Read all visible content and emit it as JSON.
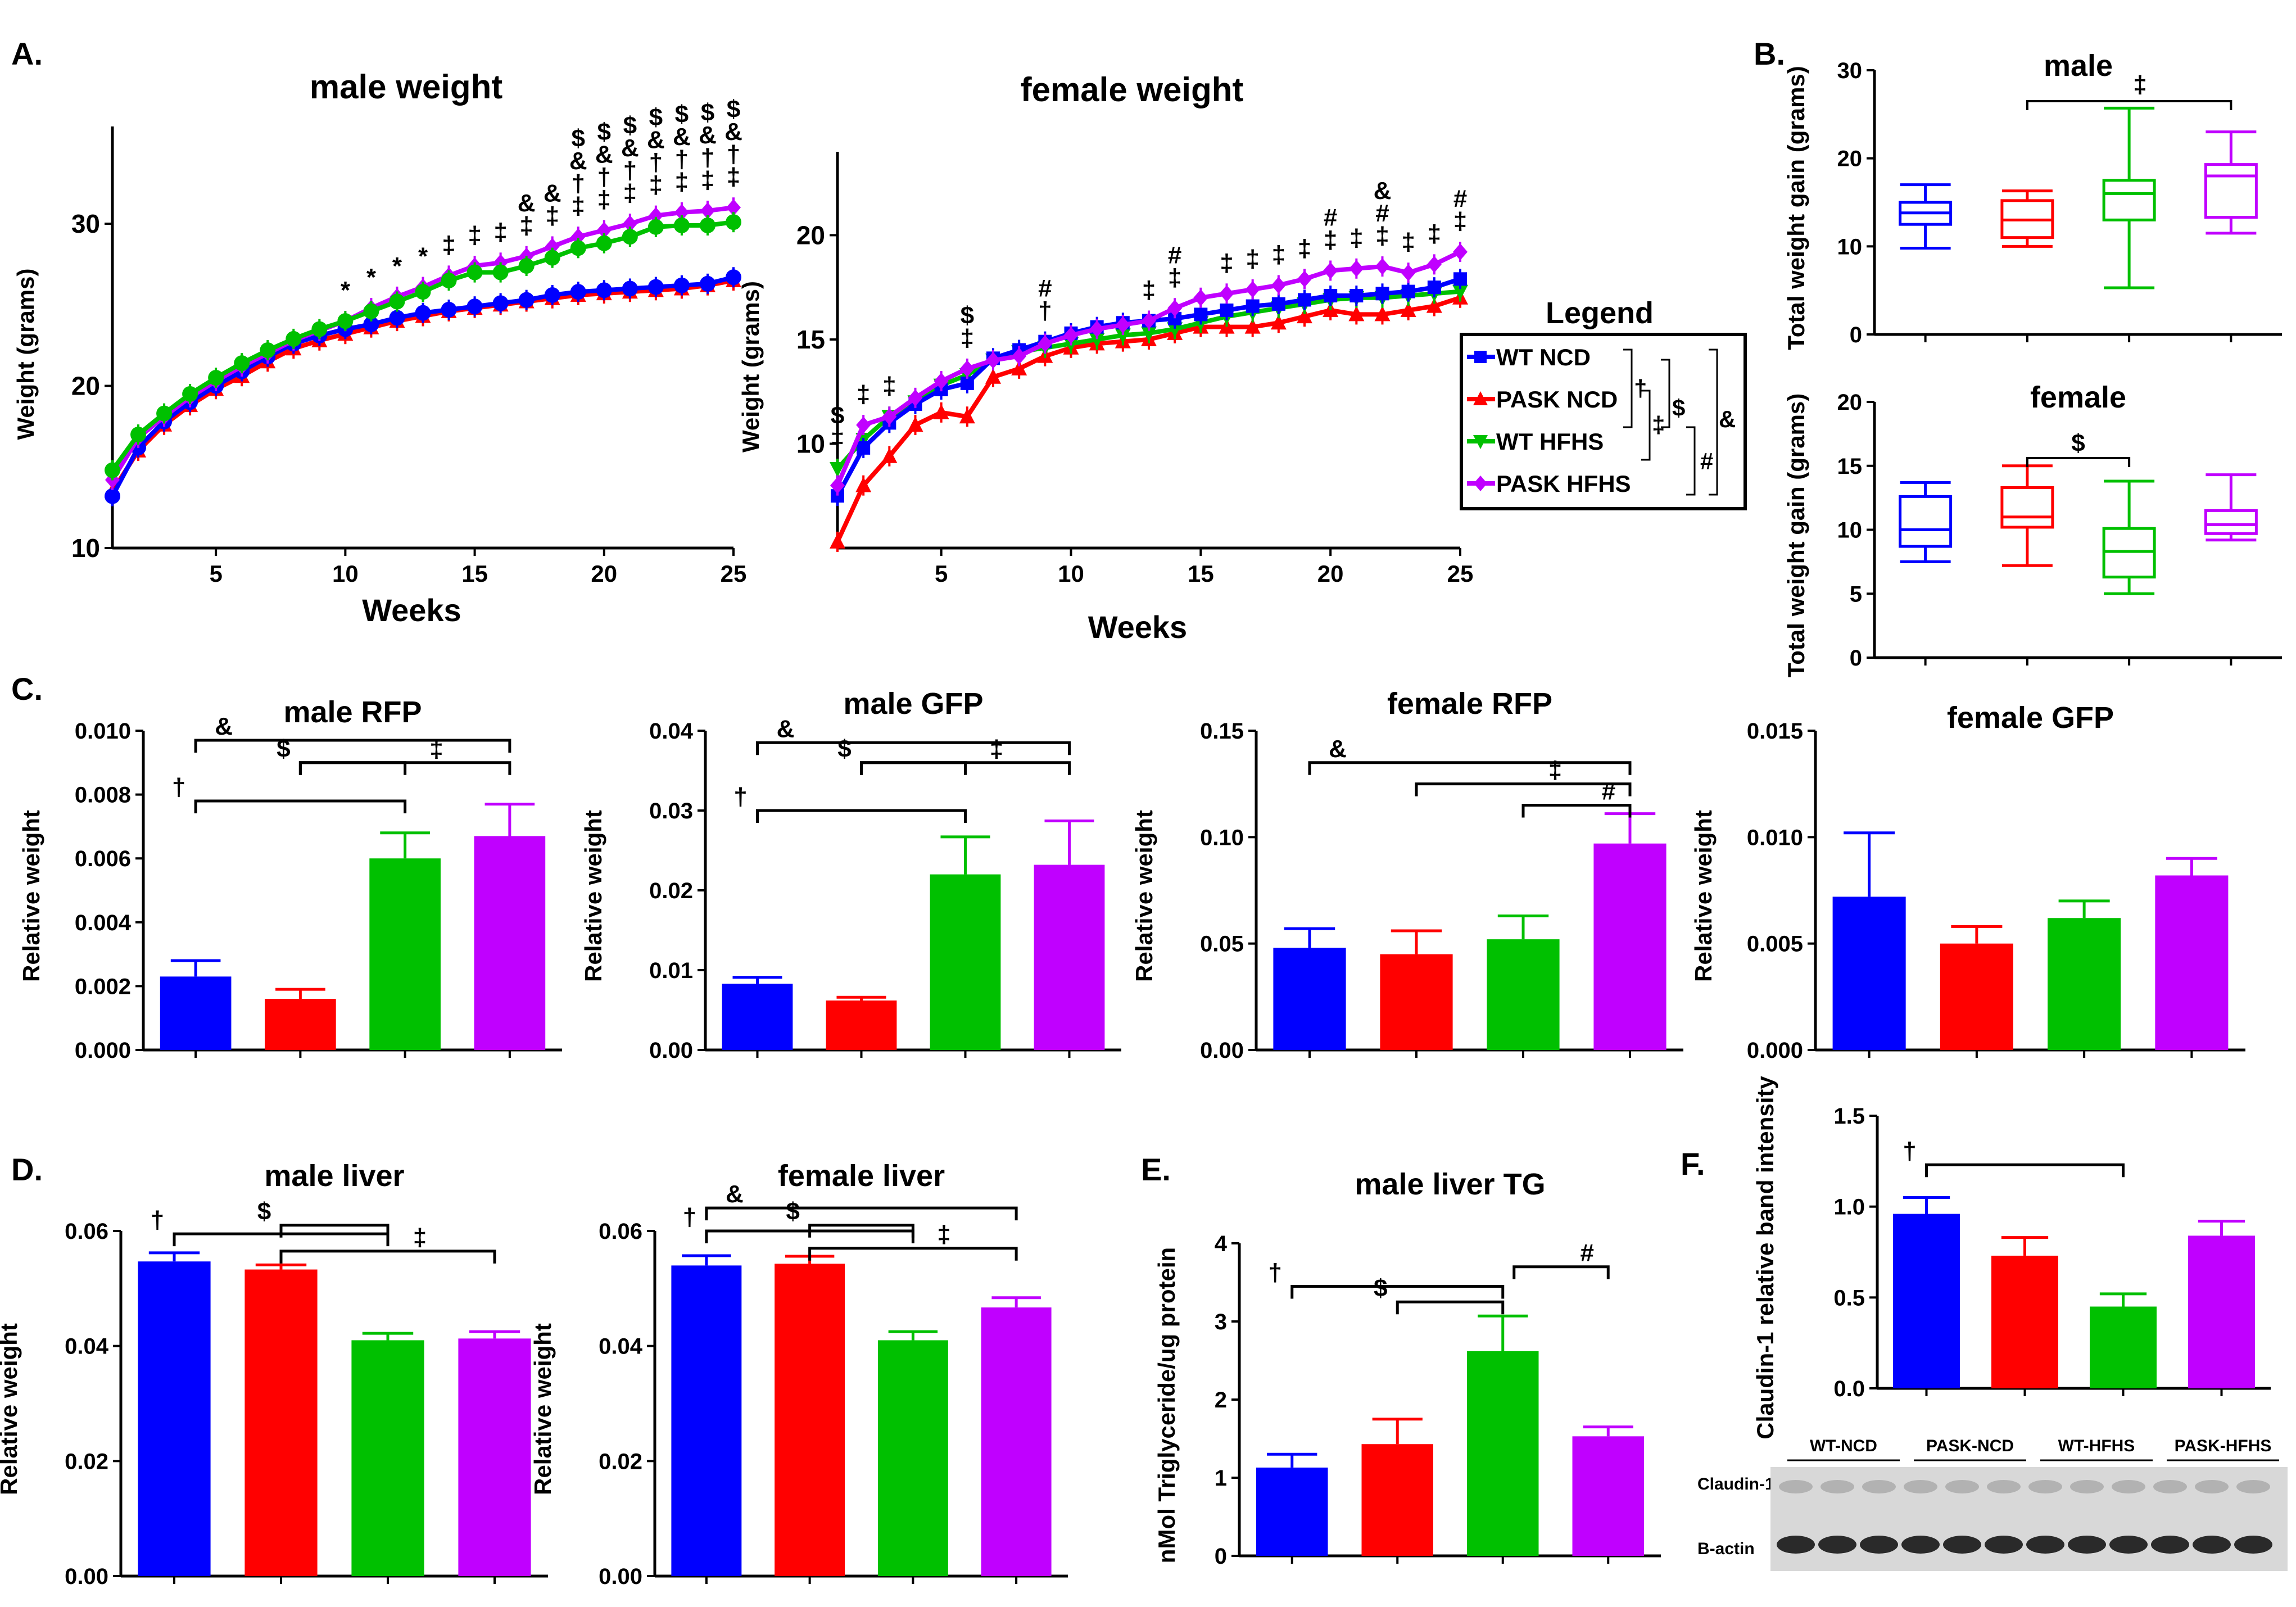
{
  "colors": {
    "wt_ncd": "#0000ff",
    "pask_ncd": "#ff0000",
    "wt_hfhs": "#00c000",
    "pask_hfhs": "#c000ff"
  },
  "legend": {
    "title": "Legend",
    "items": [
      "WT NCD",
      "PASK NCD",
      "WT HFHS",
      "PASK HFHS"
    ],
    "brackets": [
      "†",
      "‡",
      "$",
      "#",
      "&"
    ]
  },
  "panels": {
    "A": "A.",
    "B": "B.",
    "C": "C.",
    "D": "D.",
    "E": "E.",
    "F": "F."
  },
  "chart_data": [
    {
      "id": "male_weight",
      "type": "line",
      "title": "male weight",
      "xlabel": "Weeks",
      "ylabel": "Weight (grams)",
      "xlim": [
        1,
        25
      ],
      "ylim": [
        10,
        36
      ],
      "xticks": [
        5,
        10,
        15,
        20,
        25
      ],
      "yticks": [
        10,
        20,
        30
      ],
      "x": [
        1,
        2,
        3,
        4,
        5,
        6,
        7,
        8,
        9,
        10,
        11,
        12,
        13,
        14,
        15,
        16,
        17,
        18,
        19,
        20,
        21,
        22,
        23,
        24,
        25
      ],
      "series": [
        {
          "name": "WT NCD",
          "values": [
            13.2,
            16.2,
            17.8,
            19.0,
            20.0,
            20.9,
            21.8,
            22.6,
            23.1,
            23.5,
            23.8,
            24.2,
            24.5,
            24.7,
            24.9,
            25.1,
            25.3,
            25.6,
            25.8,
            25.9,
            26.0,
            26.1,
            26.2,
            26.3,
            26.7
          ]
        },
        {
          "name": "PASK NCD",
          "values": [
            13.5,
            16.0,
            17.6,
            18.8,
            19.8,
            20.6,
            21.5,
            22.3,
            22.8,
            23.2,
            23.6,
            24.0,
            24.3,
            24.6,
            24.8,
            25.0,
            25.2,
            25.4,
            25.6,
            25.7,
            25.8,
            25.9,
            26.0,
            26.2,
            26.5
          ]
        },
        {
          "name": "WT HFHS",
          "values": [
            14.8,
            17.0,
            18.3,
            19.5,
            20.5,
            21.4,
            22.2,
            22.9,
            23.5,
            24.0,
            24.6,
            25.2,
            25.8,
            26.5,
            27.0,
            27.0,
            27.4,
            27.9,
            28.5,
            28.8,
            29.2,
            29.8,
            29.9,
            29.9,
            30.1
          ]
        },
        {
          "name": "PASK HFHS",
          "values": [
            14.2,
            16.8,
            18.1,
            19.3,
            20.3,
            21.2,
            22.0,
            22.8,
            23.4,
            24.0,
            24.8,
            25.5,
            26.1,
            26.8,
            27.4,
            27.6,
            28.0,
            28.6,
            29.2,
            29.6,
            30.0,
            30.5,
            30.7,
            30.8,
            31.0
          ]
        }
      ],
      "annotations": [
        {
          "week": 10,
          "text": "*"
        },
        {
          "week": 11,
          "text": "*"
        },
        {
          "week": 12,
          "text": "*"
        },
        {
          "week": 13,
          "text": "*"
        },
        {
          "week": 14,
          "text": "‡"
        },
        {
          "week": 15,
          "text": "‡"
        },
        {
          "week": 16,
          "text": "‡"
        },
        {
          "week": 17,
          "text": "& ‡"
        },
        {
          "week": 18,
          "text": "& ‡"
        },
        {
          "week": 19,
          "text": "$ & † ‡"
        },
        {
          "week": 20,
          "text": "$ & † ‡"
        },
        {
          "week": 21,
          "text": "$ & † ‡"
        },
        {
          "week": 22,
          "text": "$ & † ‡"
        },
        {
          "week": 23,
          "text": "$ & † ‡"
        },
        {
          "week": 24,
          "text": "$ & † ‡"
        },
        {
          "week": 25,
          "text": "$ & † ‡"
        }
      ]
    },
    {
      "id": "female_weight",
      "type": "line",
      "title": "female weight",
      "xlabel": "Weeks",
      "ylabel": "Weight (grams)",
      "xlim": [
        1,
        25
      ],
      "ylim": [
        5,
        24
      ],
      "xticks": [
        5,
        10,
        15,
        20,
        25
      ],
      "yticks": [
        10,
        15,
        20
      ],
      "x": [
        1,
        2,
        3,
        4,
        5,
        6,
        7,
        8,
        9,
        10,
        11,
        12,
        13,
        14,
        15,
        16,
        17,
        18,
        19,
        20,
        21,
        22,
        23,
        24,
        25
      ],
      "series": [
        {
          "name": "WT NCD",
          "values": [
            7.5,
            9.8,
            11.0,
            11.9,
            12.6,
            12.9,
            14.1,
            14.5,
            14.9,
            15.3,
            15.6,
            15.8,
            15.9,
            16.0,
            16.2,
            16.4,
            16.6,
            16.7,
            16.9,
            17.1,
            17.1,
            17.2,
            17.3,
            17.5,
            17.9
          ]
        },
        {
          "name": "PASK NCD",
          "values": [
            5.3,
            8.0,
            9.4,
            10.9,
            11.5,
            11.3,
            13.2,
            13.6,
            14.2,
            14.6,
            14.8,
            14.9,
            15.0,
            15.3,
            15.6,
            15.6,
            15.6,
            15.8,
            16.1,
            16.4,
            16.2,
            16.2,
            16.4,
            16.6,
            17.0
          ]
        },
        {
          "name": "WT HFHS",
          "values": [
            8.8,
            10.2,
            11.3,
            12.0,
            12.8,
            13.3,
            14.0,
            14.4,
            14.6,
            14.8,
            15.0,
            15.2,
            15.3,
            15.5,
            15.8,
            16.1,
            16.3,
            16.5,
            16.7,
            16.9,
            17.0,
            17.0,
            17.1,
            17.2,
            17.3
          ]
        },
        {
          "name": "PASK HFHS",
          "values": [
            8.0,
            10.9,
            11.3,
            12.2,
            13.0,
            13.6,
            14.0,
            14.2,
            14.8,
            15.2,
            15.5,
            15.7,
            15.9,
            16.5,
            17.0,
            17.2,
            17.4,
            17.6,
            17.9,
            18.3,
            18.4,
            18.5,
            18.2,
            18.6,
            19.2
          ]
        }
      ],
      "annotations": [
        {
          "week": 1,
          "text": "$ ‡"
        },
        {
          "week": 2,
          "text": "‡"
        },
        {
          "week": 3,
          "text": "‡"
        },
        {
          "week": 6,
          "text": "$ ‡"
        },
        {
          "week": 9,
          "text": "# †"
        },
        {
          "week": 13,
          "text": "‡"
        },
        {
          "week": 14,
          "text": "# ‡"
        },
        {
          "week": 16,
          "text": "‡"
        },
        {
          "week": 17,
          "text": "‡"
        },
        {
          "week": 18,
          "text": "‡"
        },
        {
          "week": 19,
          "text": "‡"
        },
        {
          "week": 20,
          "text": "# ‡"
        },
        {
          "week": 21,
          "text": "‡"
        },
        {
          "week": 22,
          "text": "& # ‡"
        },
        {
          "week": 23,
          "text": "‡"
        },
        {
          "week": 24,
          "text": "‡"
        },
        {
          "week": 25,
          "text": "# ‡"
        }
      ]
    },
    {
      "id": "male_gain",
      "type": "box",
      "title": "male",
      "title_symbol": "‡",
      "ylabel": "Total weight gain (grams)",
      "ylim": [
        0,
        30
      ],
      "yticks": [
        0,
        10,
        20,
        30
      ],
      "categories": [
        "WT NCD",
        "PASK NCD",
        "WT HFHS",
        "PASK HFHS"
      ],
      "boxes": [
        {
          "min": 9.8,
          "q1": 12.5,
          "median": 13.8,
          "q3": 15.0,
          "max": 17.0
        },
        {
          "min": 10.0,
          "q1": 11.0,
          "median": 13.0,
          "q3": 15.2,
          "max": 16.3
        },
        {
          "min": 5.3,
          "q1": 13.0,
          "median": 16.0,
          "q3": 17.5,
          "max": 25.7
        },
        {
          "min": 11.5,
          "q1": 13.3,
          "median": 18.0,
          "q3": 19.3,
          "max": 23.0
        }
      ],
      "brackets": [
        {
          "from": 1,
          "to": 3,
          "label": ""
        }
      ]
    },
    {
      "id": "female_gain",
      "type": "box",
      "title": "female",
      "ylabel": "Total weight gain (grams)",
      "ylim": [
        0,
        20
      ],
      "yticks": [
        0,
        5,
        10,
        15,
        20
      ],
      "categories": [
        "WT NCD",
        "PASK NCD",
        "WT HFHS",
        "PASK HFHS"
      ],
      "boxes": [
        {
          "min": 7.5,
          "q1": 8.7,
          "median": 10.0,
          "q3": 12.6,
          "max": 13.7
        },
        {
          "min": 7.2,
          "q1": 10.2,
          "median": 11.0,
          "q3": 13.3,
          "max": 15.0
        },
        {
          "min": 5.0,
          "q1": 6.3,
          "median": 8.3,
          "q3": 10.1,
          "max": 13.8
        },
        {
          "min": 9.2,
          "q1": 9.7,
          "median": 10.4,
          "q3": 11.5,
          "max": 14.3
        }
      ],
      "brackets": [
        {
          "from": 1,
          "to": 2,
          "label": "$"
        }
      ]
    },
    {
      "id": "male_rfp",
      "type": "bar",
      "title": "male RFP",
      "ylabel": "Relative weight",
      "ylim": [
        0,
        0.01
      ],
      "yticks": [
        0.0,
        0.002,
        0.004,
        0.006,
        0.008,
        0.01
      ],
      "ytick_labels": [
        "0.000",
        "0.002",
        "0.004",
        "0.006",
        "0.008",
        "0.010"
      ],
      "categories": [
        "WT NCD",
        "PASK NCD",
        "WT HFHS",
        "PASK HFHS"
      ],
      "values": [
        0.0023,
        0.0016,
        0.006,
        0.0067
      ],
      "errors": [
        0.0005,
        0.0003,
        0.0008,
        0.001
      ],
      "brackets": [
        {
          "from": 0,
          "to": 3,
          "label": "&",
          "level": 0.0097
        },
        {
          "from": 1,
          "to": 2,
          "label": "$",
          "level": 0.009
        },
        {
          "from": 1,
          "to": 3,
          "label": "‡",
          "level": 0.009
        },
        {
          "from": 0,
          "to": 2,
          "label": "†",
          "level": 0.0078
        }
      ]
    },
    {
      "id": "male_gfp",
      "type": "bar",
      "title": "male GFP",
      "ylabel": "Relative weight",
      "ylim": [
        0,
        0.04
      ],
      "yticks": [
        0.0,
        0.01,
        0.02,
        0.03,
        0.04
      ],
      "ytick_labels": [
        "0.00",
        "0.01",
        "0.02",
        "0.03",
        "0.04"
      ],
      "categories": [
        "WT NCD",
        "PASK NCD",
        "WT HFHS",
        "PASK HFHS"
      ],
      "values": [
        0.0083,
        0.0062,
        0.022,
        0.0232
      ],
      "errors": [
        0.0008,
        0.0004,
        0.0047,
        0.0055
      ],
      "brackets": [
        {
          "from": 0,
          "to": 3,
          "label": "&",
          "level": 0.0385
        },
        {
          "from": 1,
          "to": 2,
          "label": "$",
          "level": 0.036
        },
        {
          "from": 1,
          "to": 3,
          "label": "‡",
          "level": 0.036
        },
        {
          "from": 0,
          "to": 2,
          "label": "†",
          "level": 0.03
        }
      ]
    },
    {
      "id": "female_rfp",
      "type": "bar",
      "title": "female RFP",
      "ylabel": "Relative weight",
      "ylim": [
        0,
        0.15
      ],
      "yticks": [
        0.0,
        0.05,
        0.1,
        0.15
      ],
      "ytick_labels": [
        "0.00",
        "0.05",
        "0.10",
        "0.15"
      ],
      "categories": [
        "WT NCD",
        "PASK NCD",
        "WT HFHS",
        "PASK HFHS"
      ],
      "values": [
        0.048,
        0.045,
        0.052,
        0.097
      ],
      "errors": [
        0.009,
        0.011,
        0.011,
        0.014
      ],
      "brackets": [
        {
          "from": 0,
          "to": 3,
          "label": "&",
          "level": 0.135
        },
        {
          "from": 1,
          "to": 3,
          "label": "‡",
          "level": 0.125
        },
        {
          "from": 2,
          "to": 3,
          "label": "#",
          "level": 0.115
        }
      ]
    },
    {
      "id": "female_gfp",
      "type": "bar",
      "title": "female GFP",
      "ylabel": "Relative weight",
      "ylim": [
        0,
        0.015
      ],
      "yticks": [
        0.0,
        0.005,
        0.01,
        0.015
      ],
      "ytick_labels": [
        "0.000",
        "0.005",
        "0.010",
        "0.015"
      ],
      "categories": [
        "WT NCD",
        "PASK NCD",
        "WT HFHS",
        "PASK HFHS"
      ],
      "values": [
        0.0072,
        0.005,
        0.0062,
        0.0082
      ],
      "errors": [
        0.003,
        0.0008,
        0.0008,
        0.0008
      ],
      "brackets": []
    },
    {
      "id": "male_liver",
      "type": "bar",
      "title": "male liver",
      "ylabel": "Relative weight",
      "ylim": [
        0,
        0.06
      ],
      "yticks": [
        0.0,
        0.02,
        0.04,
        0.06
      ],
      "ytick_labels": [
        "0.00",
        "0.02",
        "0.04",
        "0.06"
      ],
      "categories": [
        "WT NCD",
        "PASK NCD",
        "WT HFHS",
        "PASK HFHS"
      ],
      "values": [
        0.0547,
        0.0533,
        0.041,
        0.0413
      ],
      "errors": [
        0.0015,
        0.0008,
        0.0012,
        0.0012
      ],
      "brackets": [
        {
          "from": 0,
          "to": 2,
          "label": "†",
          "level": 0.0595
        },
        {
          "from": 1,
          "to": 2,
          "label": "$",
          "level": 0.061
        },
        {
          "from": 1,
          "to": 3,
          "label": "‡",
          "level": 0.0565
        }
      ]
    },
    {
      "id": "female_liver",
      "type": "bar",
      "title": "female liver",
      "ylabel": "Relative weight",
      "ylim": [
        0,
        0.06
      ],
      "yticks": [
        0.0,
        0.02,
        0.04,
        0.06
      ],
      "ytick_labels": [
        "0.00",
        "0.02",
        "0.04",
        "0.06"
      ],
      "categories": [
        "WT NCD",
        "PASK NCD",
        "WT HFHS",
        "PASK HFHS"
      ],
      "values": [
        0.054,
        0.0543,
        0.041,
        0.0467
      ],
      "errors": [
        0.0017,
        0.0013,
        0.0015,
        0.0017
      ],
      "brackets": [
        {
          "from": 0,
          "to": 3,
          "label": "&",
          "level": 0.064
        },
        {
          "from": 0,
          "to": 2,
          "label": "†",
          "level": 0.06
        },
        {
          "from": 1,
          "to": 2,
          "label": "$",
          "level": 0.061
        },
        {
          "from": 1,
          "to": 3,
          "label": "‡",
          "level": 0.057
        }
      ]
    },
    {
      "id": "male_liver_tg",
      "type": "bar",
      "title": "male liver TG",
      "ylabel": "nMol Triglyceride/ug protein",
      "ylim": [
        0,
        4
      ],
      "yticks": [
        0,
        1,
        2,
        3,
        4
      ],
      "ytick_labels": [
        "0",
        "1",
        "2",
        "3",
        "4"
      ],
      "categories": [
        "WT NCD",
        "PASK NCD",
        "WT HFHS",
        "PASK HFHS"
      ],
      "values": [
        1.13,
        1.43,
        2.62,
        1.53
      ],
      "errors": [
        0.17,
        0.32,
        0.45,
        0.12
      ],
      "brackets": [
        {
          "from": 0,
          "to": 2,
          "label": "†",
          "level": 3.45
        },
        {
          "from": 1,
          "to": 2,
          "label": "$",
          "level": 3.25
        },
        {
          "from": 2,
          "to": 3,
          "label": "#",
          "level": 3.7
        }
      ]
    },
    {
      "id": "claudin",
      "type": "bar",
      "title": "",
      "ylabel": "Claudin-1 relative band intensity",
      "ylim": [
        0,
        1.5
      ],
      "yticks": [
        0.0,
        0.5,
        1.0,
        1.5
      ],
      "ytick_labels": [
        "0.0",
        "0.5",
        "1.0",
        "1.5"
      ],
      "categories": [
        "WT NCD",
        "PASK NCD",
        "WT HFHS",
        "PASK HFHS"
      ],
      "values": [
        0.96,
        0.73,
        0.45,
        0.84
      ],
      "errors": [
        0.09,
        0.1,
        0.07,
        0.08
      ],
      "brackets": [
        {
          "from": 0,
          "to": 2,
          "label": "†",
          "level": 1.23
        }
      ]
    }
  ],
  "blot": {
    "groups": [
      "WT-NCD",
      "PASK-NCD",
      "WT-HFHS",
      "PASK-HFHS"
    ],
    "rows": [
      "Claudin-1",
      "B-actin"
    ]
  }
}
